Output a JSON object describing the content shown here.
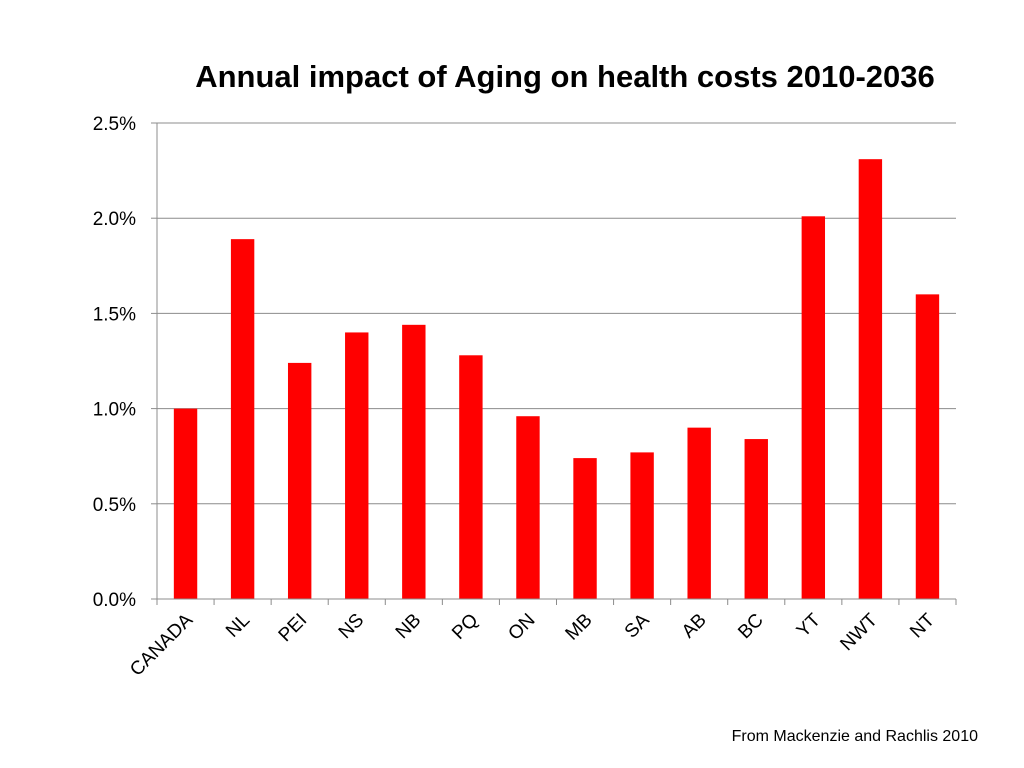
{
  "chart_data": {
    "type": "bar",
    "title": "Annual impact of Aging on health costs 2010-2036",
    "categories": [
      "CANADA",
      "NL",
      "PEI",
      "NS",
      "NB",
      "PQ",
      "ON",
      "MB",
      "SA",
      "AB",
      "BC",
      "YT",
      "NWT",
      "NT"
    ],
    "series": [
      {
        "name": "Annual impact",
        "values": [
          1.0,
          1.89,
          1.24,
          1.4,
          1.44,
          1.28,
          0.96,
          0.74,
          0.77,
          0.9,
          0.84,
          2.01,
          2.31,
          1.6
        ]
      }
    ],
    "yticks": [
      "0.0%",
      "0.5%",
      "1.0%",
      "1.5%",
      "2.0%",
      "2.5%"
    ],
    "ylim": [
      0,
      2.5
    ],
    "xlabel": "",
    "ylabel": "",
    "grid": true,
    "bar_color": "#ff0000",
    "source": "From Mackenzie and Rachlis 2010"
  }
}
